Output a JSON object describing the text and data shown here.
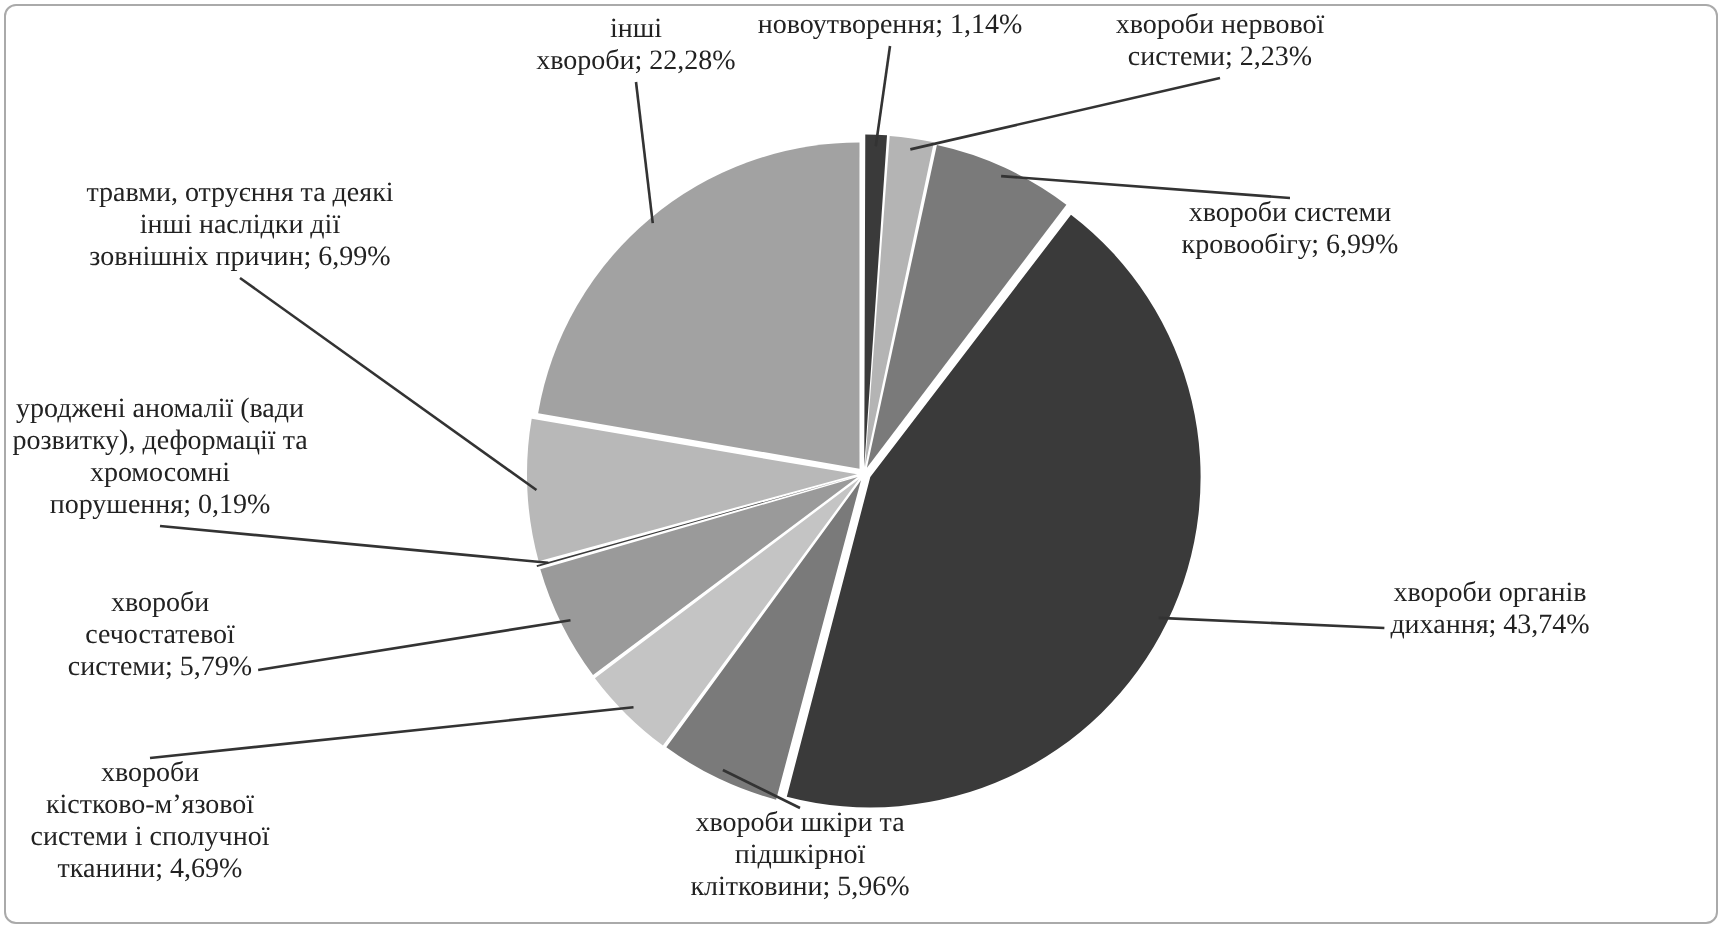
{
  "chart_data": {
    "type": "pie",
    "categories": [
      "новоутворення",
      "хвороби нервової системи",
      "хвороби системи кровообігу",
      "хвороби органів дихання",
      "хвороби шкіри та підшкірної клітковини",
      "хвороби кістково-м’язової системи і сполучної тканини",
      "хвороби сечостатевої системи",
      "уроджені аномалії (вади розвитку), деформації та хромосомні порушення",
      "травми, отруєння та деякі інші наслідки дії зовнішніх причин",
      "інші хвороби"
    ],
    "values": [
      1.14,
      2.23,
      6.99,
      43.74,
      5.96,
      4.69,
      5.79,
      0.19,
      6.99,
      22.28
    ],
    "value_labels": [
      "1,14%",
      "2,23%",
      "6,99%",
      "43,74%",
      "5,96%",
      "4,69%",
      "5,79%",
      "0,19%",
      "6,99%",
      "22,28%"
    ],
    "colors": [
      "#3a3a3a",
      "#b4b4b4",
      "#7a7a7a",
      "#3a3a3a",
      "#7a7a7a",
      "#c4c4c4",
      "#9a9a9a",
      "#3a3a3a",
      "#b8b8b8",
      "#a2a2a2"
    ],
    "legend": false
  }
}
